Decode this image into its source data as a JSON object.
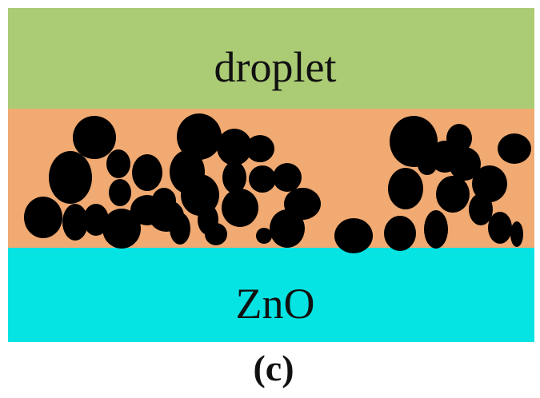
{
  "layers": {
    "droplet": {
      "label": "droplet",
      "color": "#abcb74"
    },
    "interlayer": {
      "color": "#f0aa72"
    },
    "substrate": {
      "label": "ZnO",
      "color": "#05e3e3"
    }
  },
  "particles": {
    "color": "#000000"
  },
  "caption": "(c)"
}
